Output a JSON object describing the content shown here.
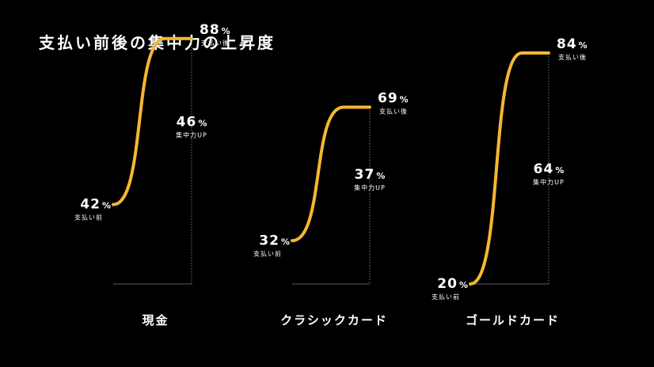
{
  "title": "支払い前後の集中力の上昇度",
  "chart_data": {
    "type": "line",
    "title": "支払い前後の集中力の上昇度",
    "ylim": [
      0,
      100
    ],
    "unit": "%",
    "before_label": "支払い前",
    "after_label": "支払い後",
    "up_label": "集中力UP",
    "accent_color": "#F5B731",
    "series": [
      {
        "name": "現金",
        "before": 42,
        "after": 88,
        "up": 46
      },
      {
        "name": "クラシックカード",
        "before": 32,
        "after": 69,
        "up": 37
      },
      {
        "name": "ゴールドカード",
        "before": 20,
        "after": 84,
        "up": 64
      }
    ]
  }
}
